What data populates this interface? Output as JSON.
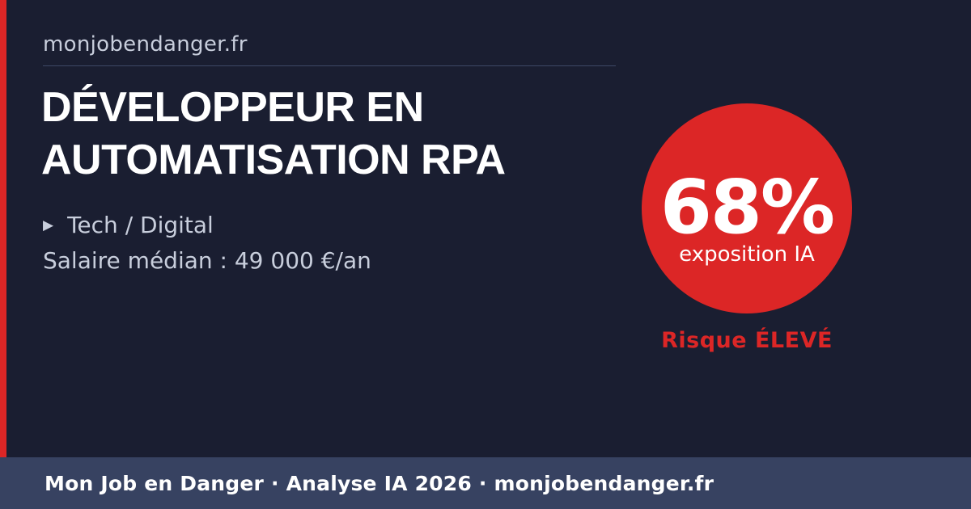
{
  "header": {
    "site_label": "monjobendanger.fr"
  },
  "main": {
    "job_title": "DÉVELOPPEUR EN AUTOMATISATION RPA",
    "category_bullet": "▶",
    "category": "Tech / Digital",
    "salary": "Salaire médian : 49 000 €/an"
  },
  "badge": {
    "percent": "68%",
    "caption": "exposition IA",
    "risk_label": "Risque ÉLEVÉ"
  },
  "footer": {
    "text": "Mon Job en Danger · Analyse IA 2026 · monjobendanger.fr"
  },
  "colors": {
    "background": "#1a1e31",
    "accent_red": "#dc2626",
    "footer_bg": "#374261",
    "text_muted": "#c8cedc",
    "text_white": "#ffffff",
    "divider": "#3d4866"
  }
}
